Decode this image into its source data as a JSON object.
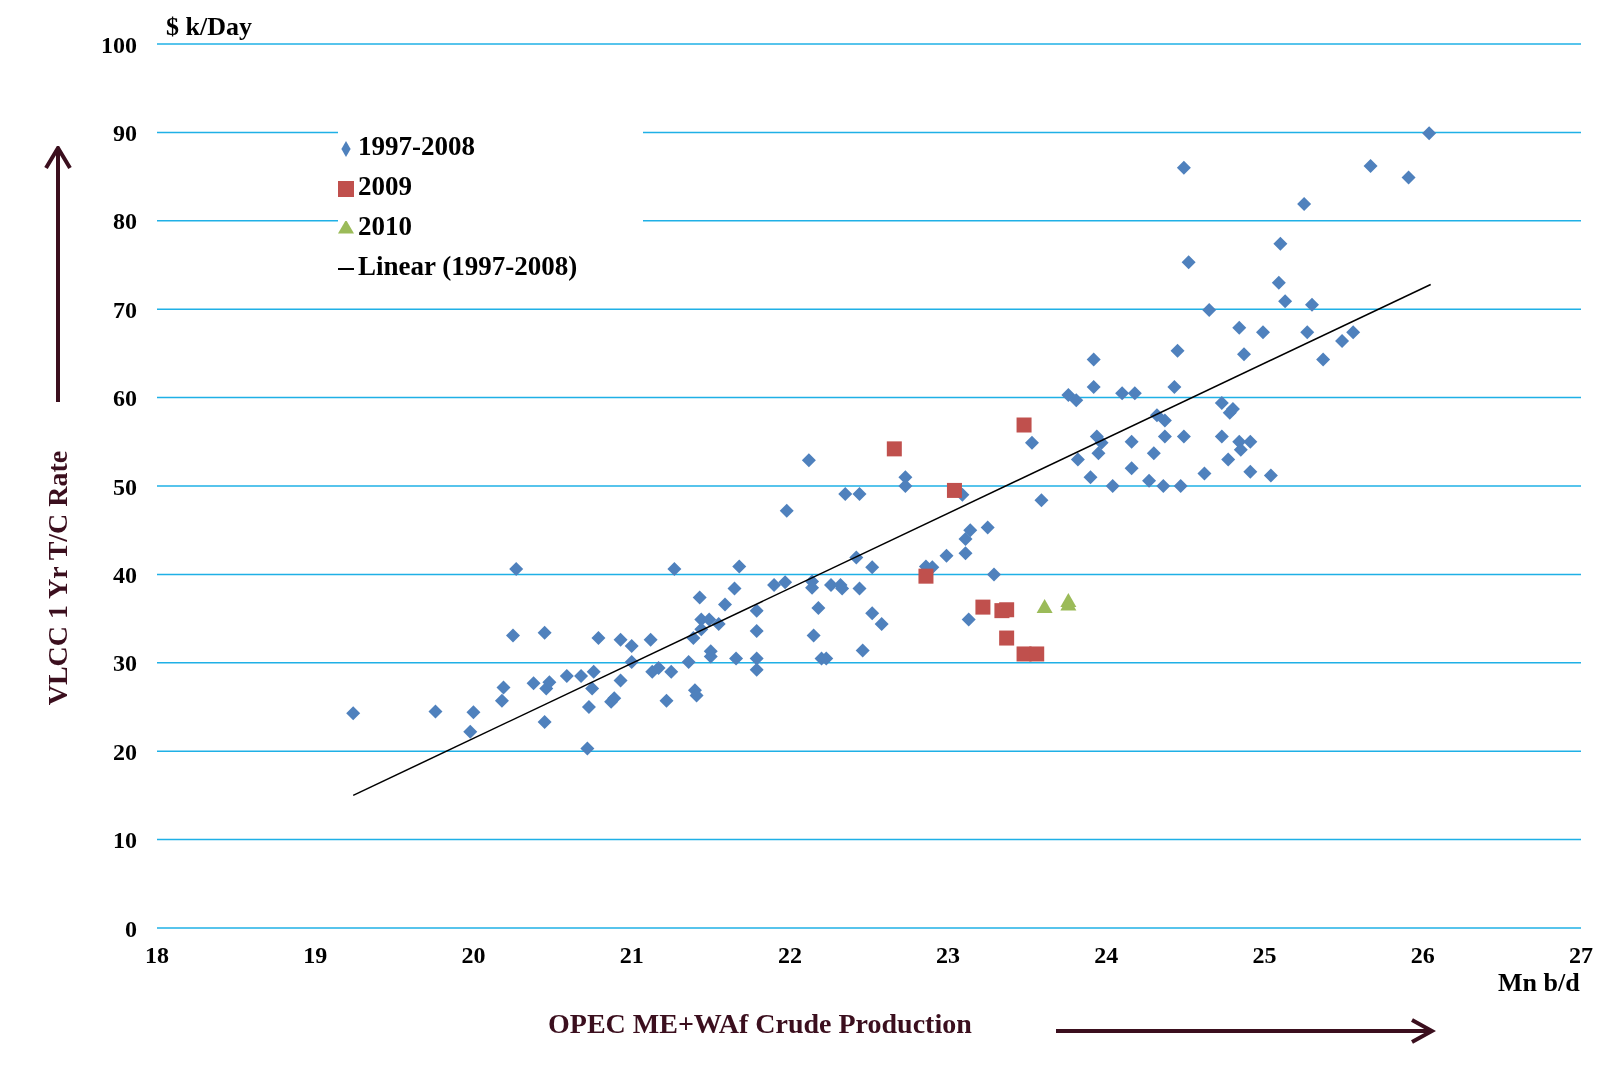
{
  "chart_data": {
    "type": "scatter",
    "xlabel": "OPEC ME+WAf Crude Production",
    "ylabel": "VLCC 1 Yr T/C Rate",
    "annotations": [
      "$ k/Day",
      "Mn b/d"
    ],
    "xlim": [
      18,
      27
    ],
    "xticks": [
      18,
      19,
      20,
      21,
      22,
      23,
      24,
      25,
      26,
      27
    ],
    "ylim": [
      0,
      100
    ],
    "yticks": [
      0,
      10,
      20,
      30,
      40,
      50,
      60,
      70,
      80,
      90,
      100
    ],
    "grid": "y",
    "legend": "top left",
    "series": [
      {
        "name": "1997-2008",
        "color": "#4f81bd",
        "marker": "diamond",
        "x": [
          19.24,
          19.76,
          19.98,
          20.0,
          20.18,
          20.19,
          20.27,
          20.25,
          20.38,
          20.45,
          20.45,
          20.46,
          20.48,
          20.59,
          20.68,
          20.73,
          20.72,
          20.75,
          20.76,
          20.79,
          20.87,
          20.89,
          20.93,
          20.93,
          21.0,
          21.0,
          21.12,
          21.13,
          21.17,
          21.22,
          21.25,
          21.27,
          21.36,
          21.39,
          21.4,
          21.41,
          21.43,
          21.44,
          21.44,
          21.49,
          21.5,
          21.5,
          21.55,
          21.59,
          21.65,
          21.66,
          21.68,
          21.79,
          21.79,
          21.79,
          21.79,
          21.9,
          21.97,
          21.98,
          22.12,
          22.14,
          22.14,
          22.15,
          22.18,
          22.2,
          22.23,
          22.26,
          22.32,
          22.33,
          22.35,
          22.42,
          22.44,
          22.44,
          22.46,
          22.52,
          22.52,
          22.58,
          22.73,
          22.73,
          22.86,
          22.9,
          22.99,
          23.09,
          23.11,
          23.11,
          23.13,
          23.14,
          23.25,
          23.29,
          23.53,
          23.59,
          23.76,
          23.81,
          23.82,
          23.9,
          23.92,
          23.92,
          23.94,
          23.95,
          23.97,
          24.04,
          24.1,
          24.16,
          24.16,
          24.18,
          24.27,
          24.3,
          24.32,
          24.37,
          24.36,
          24.37,
          24.43,
          24.45,
          24.47,
          24.49,
          24.49,
          24.52,
          24.62,
          24.65,
          24.73,
          24.73,
          24.77,
          24.78,
          24.8,
          24.84,
          24.84,
          24.85,
          24.87,
          24.91,
          24.91,
          24.99,
          25.04,
          25.09,
          25.1,
          25.13,
          25.25,
          25.27,
          25.3,
          25.37,
          25.49,
          25.56,
          25.67,
          25.91,
          26.04
        ],
        "values": [
          24.3,
          24.5,
          22.2,
          24.4,
          25.7,
          27.2,
          40.6,
          33.1,
          27.7,
          33.4,
          23.3,
          27.1,
          27.8,
          28.5,
          28.5,
          25.0,
          20.3,
          27.1,
          29.0,
          32.8,
          25.6,
          26.0,
          28.0,
          32.6,
          31.9,
          30.1,
          32.6,
          29.0,
          29.4,
          25.7,
          29.0,
          40.6,
          30.1,
          32.8,
          26.9,
          26.3,
          37.4,
          34.9,
          33.8,
          34.9,
          31.3,
          30.7,
          34.4,
          36.6,
          38.4,
          30.5,
          40.9,
          35.9,
          33.6,
          30.5,
          29.2,
          38.8,
          39.1,
          47.2,
          52.9,
          39.2,
          38.5,
          33.1,
          36.2,
          30.5,
          30.5,
          38.8,
          38.8,
          38.4,
          49.1,
          41.9,
          49.1,
          38.4,
          31.4,
          35.6,
          40.8,
          34.4,
          51.0,
          50.0,
          40.9,
          40.8,
          42.1,
          49.0,
          44.0,
          42.4,
          34.9,
          45.0,
          45.3,
          40.0,
          54.9,
          48.4,
          60.3,
          59.7,
          53.0,
          51.0,
          61.2,
          64.3,
          55.6,
          53.7,
          54.9,
          50.0,
          60.5,
          52.0,
          55.0,
          60.5,
          50.6,
          53.7,
          58.0,
          57.4,
          50.0,
          55.6,
          61.2,
          65.3,
          50.0,
          55.6,
          86.0,
          75.3,
          51.4,
          69.9,
          59.4,
          55.6,
          53.0,
          58.3,
          58.7,
          67.9,
          55.0,
          54.1,
          64.9,
          55.0,
          51.6,
          67.4,
          51.2,
          73.0,
          77.4,
          70.9,
          81.9,
          67.4,
          70.5,
          64.3,
          66.4,
          67.4,
          86.2,
          84.9,
          89.9
        ]
      },
      {
        "name": "2009",
        "color": "#c0504d",
        "marker": "square",
        "x": [
          22.66,
          23.48,
          23.04,
          22.86,
          23.22,
          23.34,
          23.37,
          23.37,
          23.48,
          23.56
        ],
        "values": [
          54.2,
          56.9,
          49.5,
          39.8,
          36.3,
          35.9,
          36.0,
          32.8,
          31.0,
          31.0
        ]
      },
      {
        "name": "2010",
        "color": "#9bbb59",
        "marker": "triangle",
        "x": [
          23.61,
          23.76,
          23.76
        ],
        "values": [
          36.3,
          37.0,
          36.6
        ]
      },
      {
        "name": "Linear (1997-2008)",
        "type": "line",
        "color": "#000000",
        "marker": "none",
        "line_style": "solid",
        "x": [
          19.24,
          26.05
        ],
        "values": [
          15.0,
          72.8
        ]
      }
    ]
  }
}
